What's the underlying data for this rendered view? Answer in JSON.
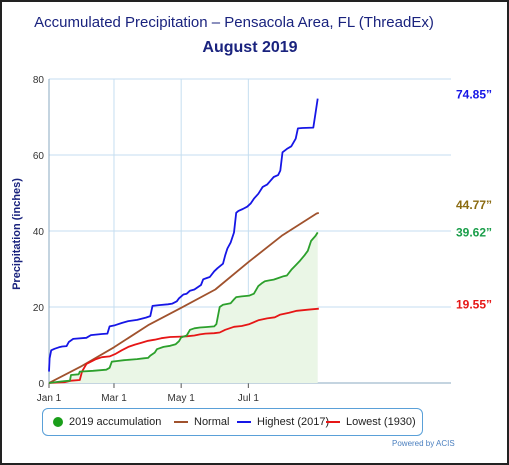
{
  "chart_data": {
    "type": "line",
    "title": "Accumulated Precipitation – Pensacola Area, FL (ThreadEx)",
    "subtitle": "August 2019",
    "ylabel": "Precipitation (inches)",
    "xlabel": "",
    "ylim": [
      0,
      80
    ],
    "xlim": [
      0,
      365
    ],
    "y_ticks": [
      "0",
      "20",
      "40",
      "60",
      "80"
    ],
    "y_tick_values": [
      0,
      20,
      40,
      60,
      80
    ],
    "x_ticks": [
      "Jan 1",
      "Mar 1",
      "May 1",
      "Jul 1"
    ],
    "x_tick_values": [
      0,
      59,
      120,
      181
    ],
    "grid": true,
    "legend_position": "bottom",
    "series": [
      {
        "name": "2019 accumulation",
        "color": "#2ca02c",
        "fill": "#eaf6e6",
        "end_label": "39.62”",
        "points": [
          [
            0,
            0
          ],
          [
            8,
            0.3
          ],
          [
            14,
            0.5
          ],
          [
            19,
            0.6
          ],
          [
            20,
            2.1
          ],
          [
            27,
            2.3
          ],
          [
            28,
            3.0
          ],
          [
            40,
            3.2
          ],
          [
            52,
            3.5
          ],
          [
            55,
            4.0
          ],
          [
            57,
            5.6
          ],
          [
            62,
            5.8
          ],
          [
            68,
            6.0
          ],
          [
            80,
            6.3
          ],
          [
            86,
            6.5
          ],
          [
            90,
            6.6
          ],
          [
            92,
            7.2
          ],
          [
            96,
            8.0
          ],
          [
            98,
            8.9
          ],
          [
            104,
            9.5
          ],
          [
            110,
            9.8
          ],
          [
            115,
            10.2
          ],
          [
            118,
            11.0
          ],
          [
            120,
            12.0
          ],
          [
            125,
            12.5
          ],
          [
            128,
            14.0
          ],
          [
            132,
            14.4
          ],
          [
            137,
            14.6
          ],
          [
            142,
            14.7
          ],
          [
            150,
            14.9
          ],
          [
            152,
            15.5
          ],
          [
            155,
            20.0
          ],
          [
            158,
            20.6
          ],
          [
            165,
            21.0
          ],
          [
            168,
            22.0
          ],
          [
            170,
            22.6
          ],
          [
            175,
            22.8
          ],
          [
            182,
            23.0
          ],
          [
            186,
            23.5
          ],
          [
            190,
            25.5
          ],
          [
            193,
            26.2
          ],
          [
            196,
            26.8
          ],
          [
            200,
            27.0
          ],
          [
            204,
            27.2
          ],
          [
            208,
            27.6
          ],
          [
            213,
            28.1
          ],
          [
            216,
            28.3
          ],
          [
            220,
            29.8
          ],
          [
            224,
            31.0
          ],
          [
            228,
            32.2
          ],
          [
            232,
            33.6
          ],
          [
            235,
            34.8
          ],
          [
            238,
            37.4
          ],
          [
            242,
            38.7
          ],
          [
            244,
            39.62
          ]
        ]
      },
      {
        "name": "Normal",
        "color": "#a0522d",
        "end_label": "44.77”",
        "points": [
          [
            0,
            0
          ],
          [
            30,
            4.5
          ],
          [
            59,
            9.4
          ],
          [
            90,
            15.2
          ],
          [
            120,
            19.8
          ],
          [
            151,
            24.6
          ],
          [
            181,
            31.8
          ],
          [
            212,
            38.9
          ],
          [
            243,
            44.6
          ],
          [
            245,
            44.77
          ]
        ]
      },
      {
        "name": "Highest (2017)",
        "color": "#1616e6",
        "end_label": "74.85”",
        "points": [
          [
            0,
            3.0
          ],
          [
            0.5,
            6.5
          ],
          [
            2,
            8.6
          ],
          [
            5,
            9.0
          ],
          [
            9,
            9.4
          ],
          [
            12,
            9.6
          ],
          [
            16,
            9.7
          ],
          [
            18,
            10.8
          ],
          [
            22,
            11.6
          ],
          [
            34,
            11.9
          ],
          [
            38,
            12.6
          ],
          [
            48,
            12.9
          ],
          [
            53,
            13.0
          ],
          [
            55,
            14.9
          ],
          [
            60,
            15.2
          ],
          [
            66,
            15.8
          ],
          [
            72,
            16.3
          ],
          [
            80,
            16.6
          ],
          [
            88,
            17.2
          ],
          [
            92,
            17.6
          ],
          [
            94,
            20.3
          ],
          [
            100,
            20.5
          ],
          [
            108,
            20.7
          ],
          [
            112,
            20.9
          ],
          [
            116,
            21.5
          ],
          [
            118,
            22.3
          ],
          [
            120,
            22.8
          ],
          [
            122,
            23.3
          ],
          [
            125,
            23.5
          ],
          [
            128,
            24.3
          ],
          [
            132,
            24.6
          ],
          [
            135,
            25.2
          ],
          [
            138,
            25.8
          ],
          [
            140,
            27.3
          ],
          [
            143,
            27.6
          ],
          [
            146,
            27.9
          ],
          [
            150,
            29.4
          ],
          [
            153,
            30.2
          ],
          [
            158,
            31.4
          ],
          [
            160,
            33.6
          ],
          [
            162,
            35.4
          ],
          [
            165,
            37.0
          ],
          [
            168,
            39.6
          ],
          [
            170,
            44.8
          ],
          [
            172,
            45.3
          ],
          [
            176,
            45.8
          ],
          [
            180,
            46.4
          ],
          [
            183,
            47.2
          ],
          [
            186,
            48.5
          ],
          [
            190,
            49.8
          ],
          [
            194,
            51.6
          ],
          [
            198,
            52.2
          ],
          [
            201,
            53.2
          ],
          [
            204,
            54.2
          ],
          [
            208,
            54.7
          ],
          [
            210,
            55.9
          ],
          [
            212,
            60.7
          ],
          [
            216,
            61.6
          ],
          [
            220,
            62.3
          ],
          [
            224,
            64.3
          ],
          [
            226,
            67.0
          ],
          [
            230,
            67.1
          ],
          [
            240,
            67.2
          ],
          [
            242,
            71.0
          ],
          [
            244,
            74.85
          ]
        ]
      },
      {
        "name": "Lowest (1930)",
        "color": "#e61616",
        "end_label": "19.55”",
        "points": [
          [
            0,
            0
          ],
          [
            14,
            0.2
          ],
          [
            20,
            0.6
          ],
          [
            28,
            0.8
          ],
          [
            30,
            3.0
          ],
          [
            34,
            5.0
          ],
          [
            38,
            5.6
          ],
          [
            42,
            6.2
          ],
          [
            48,
            6.8
          ],
          [
            55,
            7.0
          ],
          [
            60,
            7.6
          ],
          [
            66,
            8.6
          ],
          [
            72,
            9.5
          ],
          [
            78,
            10.1
          ],
          [
            84,
            10.6
          ],
          [
            90,
            11.1
          ],
          [
            96,
            11.4
          ],
          [
            102,
            11.8
          ],
          [
            110,
            12.1
          ],
          [
            120,
            12.2
          ],
          [
            125,
            12.3
          ],
          [
            132,
            12.5
          ],
          [
            137,
            12.8
          ],
          [
            142,
            13.0
          ],
          [
            150,
            13.1
          ],
          [
            155,
            13.3
          ],
          [
            160,
            14.0
          ],
          [
            168,
            14.8
          ],
          [
            175,
            15.0
          ],
          [
            182,
            15.5
          ],
          [
            190,
            16.5
          ],
          [
            198,
            17.0
          ],
          [
            205,
            17.3
          ],
          [
            210,
            18.0
          ],
          [
            218,
            18.5
          ],
          [
            225,
            19.0
          ],
          [
            235,
            19.3
          ],
          [
            245,
            19.55
          ]
        ]
      }
    ]
  },
  "credits": "Powered by ACIS"
}
